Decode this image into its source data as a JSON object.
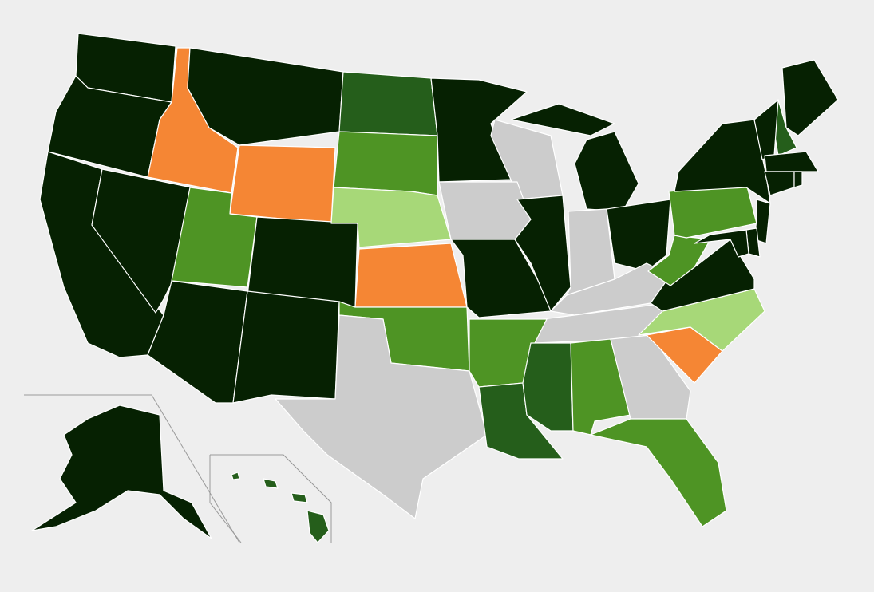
{
  "states": [
    {
      "color": "#062102"
    },
    {
      "color": "#062102"
    },
    {
      "color": "#062102"
    },
    {
      "color": "#062102"
    },
    {
      "color": "#f58634"
    },
    {
      "color": "#062102"
    },
    {
      "color": "#f58634"
    },
    {
      "color": "#4e9424"
    },
    {
      "color": "#062102"
    },
    {
      "color": "#062102"
    },
    {
      "color": "#062102"
    },
    {
      "color": "#255e1b"
    },
    {
      "color": "#4e9424"
    },
    {
      "color": "#a7d878"
    },
    {
      "color": "#f58634"
    },
    {
      "color": "#4e9424"
    },
    {
      "color": "#cccccc"
    },
    {
      "color": "#062102"
    },
    {
      "color": "#cccccc"
    },
    {
      "color": "#cccccc"
    },
    {
      "color": "#062102"
    },
    {
      "color": "#062102"
    },
    {
      "color": "#062102"
    },
    {
      "color": "#cccccc"
    },
    {
      "color": "#062102"
    },
    {
      "color": "#cccccc"
    },
    {
      "color": "#cccccc"
    },
    {
      "color": "#4e9424"
    },
    {
      "color": "#255e1b"
    },
    {
      "color": "#255e1b"
    },
    {
      "color": "#4e9424"
    },
    {
      "color": "#cccccc"
    },
    {
      "color": "#4e9424"
    },
    {
      "color": "#f58634"
    },
    {
      "color": "#a7d878"
    },
    {
      "color": "#062102"
    },
    {
      "color": "#4e9424"
    },
    {
      "color": "#4e9424"
    },
    {
      "color": "#062102"
    },
    {
      "color": "#062102"
    },
    {
      "color": "#255e1b"
    },
    {
      "color": "#062102"
    },
    {
      "color": "#062102"
    },
    {
      "color": "#062102"
    },
    {
      "color": "#062102"
    },
    {
      "color": "#062102"
    },
    {
      "color": "#062102"
    },
    {
      "color": "#062102"
    },
    {
      "color": "#062102"
    },
    {
      "color": "#255e1b"
    }
  ]
}
